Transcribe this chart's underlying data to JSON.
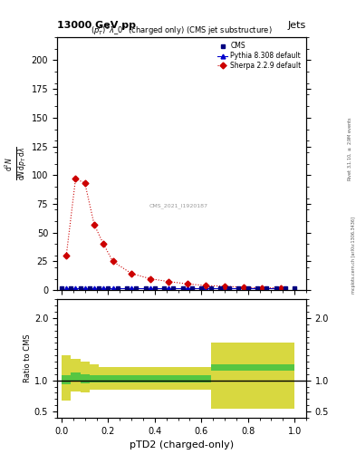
{
  "title_top": "13000 GeV pp",
  "title_right": "Jets",
  "plot_title": "$(p_T^P)^2\\lambda\\_0^2$ (charged only) (CMS jet substructure)",
  "xlabel": "pTD2 (charged-only)",
  "ylabel_ratio": "Ratio to CMS",
  "watermark": "CMS_2021_I1920187",
  "cms_x": [
    0.0,
    0.04,
    0.08,
    0.12,
    0.16,
    0.2,
    0.24,
    0.28,
    0.32,
    0.36,
    0.4,
    0.44,
    0.48,
    0.52,
    0.56,
    0.6,
    0.64,
    0.68,
    0.72,
    0.76,
    0.8,
    0.84,
    0.88,
    0.92,
    0.96,
    1.0
  ],
  "cms_y": [
    2.0,
    2.0,
    2.0,
    2.0,
    2.0,
    2.0,
    2.0,
    2.0,
    2.0,
    2.0,
    2.0,
    2.0,
    2.0,
    2.0,
    2.0,
    2.0,
    2.0,
    2.0,
    2.0,
    2.0,
    2.0,
    2.0,
    2.0,
    2.0,
    2.0,
    2.0
  ],
  "sherpa_x": [
    0.02,
    0.06,
    0.1,
    0.14,
    0.18,
    0.22,
    0.3,
    0.38,
    0.46,
    0.54,
    0.62,
    0.7,
    0.78,
    0.86,
    0.94
  ],
  "sherpa_y": [
    30.0,
    97.0,
    93.0,
    57.0,
    40.0,
    25.0,
    14.5,
    10.0,
    7.5,
    5.5,
    4.0,
    3.5,
    2.5,
    2.0,
    2.0
  ],
  "pythia_x": [
    0.02,
    0.06,
    0.1,
    0.14,
    0.18,
    0.22,
    0.3,
    0.38,
    0.46,
    0.54,
    0.62,
    0.7,
    0.78,
    0.86,
    0.94
  ],
  "pythia_y": [
    2.0,
    2.0,
    2.0,
    2.0,
    2.0,
    2.0,
    2.0,
    2.0,
    2.0,
    2.0,
    2.0,
    2.0,
    2.0,
    2.0,
    2.0
  ],
  "ratio_bin_edges": [
    0.0,
    0.04,
    0.08,
    0.12,
    0.16,
    0.2,
    0.24,
    0.4,
    0.52,
    0.64,
    0.72,
    0.8,
    1.0
  ],
  "ratio_green_low": [
    0.93,
    0.98,
    0.95,
    0.97,
    0.96,
    0.97,
    0.97,
    0.97,
    0.97,
    1.15,
    1.15,
    1.15
  ],
  "ratio_green_high": [
    1.08,
    1.12,
    1.1,
    1.08,
    1.08,
    1.08,
    1.08,
    1.08,
    1.08,
    1.25,
    1.25,
    1.25
  ],
  "ratio_yellow_low": [
    0.68,
    0.82,
    0.8,
    0.85,
    0.85,
    0.85,
    0.85,
    0.85,
    0.85,
    0.55,
    0.55,
    0.55
  ],
  "ratio_yellow_high": [
    1.4,
    1.35,
    1.3,
    1.25,
    1.22,
    1.22,
    1.22,
    1.22,
    1.22,
    1.6,
    1.6,
    1.6
  ],
  "ylim_main": [
    0,
    220
  ],
  "ylim_ratio": [
    0.4,
    2.3
  ],
  "color_cms": "#000080",
  "color_sherpa": "#cc0000",
  "color_pythia": "#0000cc",
  "color_green": "#00bb44",
  "color_yellow": "#cccc00",
  "bg_color": "#ffffff"
}
